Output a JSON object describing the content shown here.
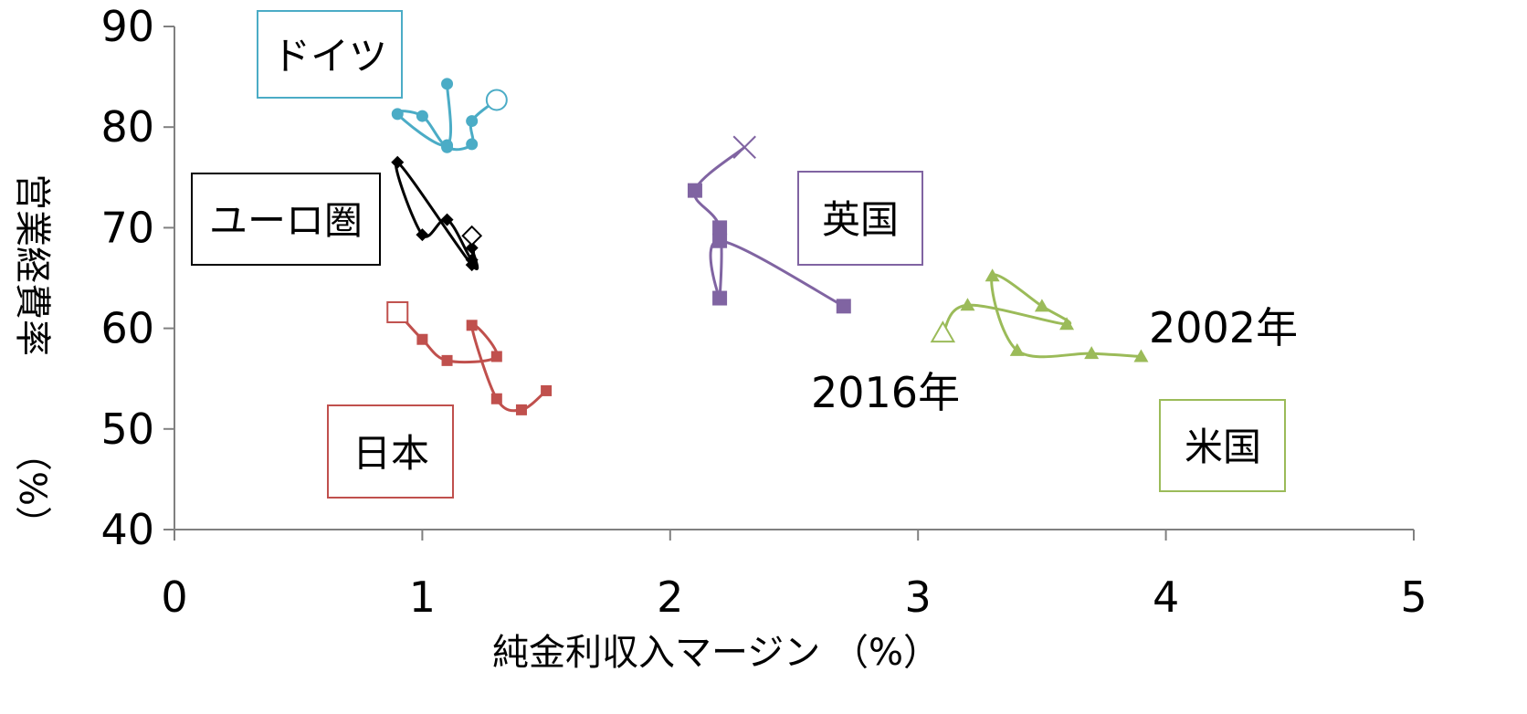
{
  "chart_data": {
    "type": "scatter",
    "title": "",
    "xlabel": "純金利収入マージン （%）",
    "ylabel_main": "営業経費率",
    "ylabel_unit": "（%）",
    "xlim": [
      0,
      5
    ],
    "ylim": [
      40,
      90
    ],
    "x_ticks": [
      "0",
      "1",
      "2",
      "3",
      "4",
      "5"
    ],
    "y_ticks": [
      "40",
      "50",
      "60",
      "70",
      "80",
      "90"
    ],
    "grid": false,
    "annotations": {
      "start_year": "2002年",
      "end_year": "2016年"
    },
    "series": [
      {
        "name": "ドイツ",
        "color": "#4bacc6",
        "marker": "circle",
        "end_marker": "circle-open",
        "points": [
          [
            1.1,
            84.3
          ],
          [
            1.1,
            78.2
          ],
          [
            0.9,
            81.3
          ],
          [
            1.0,
            81.1
          ],
          [
            1.1,
            78.0
          ],
          [
            1.2,
            78.3
          ],
          [
            1.2,
            80.6
          ],
          [
            1.3,
            82.7
          ]
        ]
      },
      {
        "name": "ユーロ圏",
        "color": "#000000",
        "marker": "diamond",
        "end_marker": "diamond-open",
        "points": [
          [
            1.2,
            68.0
          ],
          [
            1.2,
            66.3
          ],
          [
            0.9,
            76.5
          ],
          [
            1.0,
            69.3
          ],
          [
            1.1,
            70.8
          ],
          [
            1.2,
            66.8
          ],
          [
            1.2,
            69.2
          ]
        ]
      },
      {
        "name": "英国",
        "color": "#8064a2",
        "marker": "square",
        "end_marker": "x",
        "points": [
          [
            2.7,
            62.2
          ],
          [
            2.2,
            68.7
          ],
          [
            2.2,
            63.0
          ],
          [
            2.2,
            70.0
          ],
          [
            2.1,
            73.7
          ],
          [
            2.3,
            78.0
          ]
        ]
      },
      {
        "name": "日本",
        "color": "#c0504d",
        "marker": "square-small",
        "end_marker": "square-open",
        "points": [
          [
            1.5,
            53.8
          ],
          [
            1.4,
            51.9
          ],
          [
            1.3,
            53.0
          ],
          [
            1.2,
            60.3
          ],
          [
            1.3,
            57.2
          ],
          [
            1.1,
            56.8
          ],
          [
            1.0,
            58.9
          ],
          [
            0.9,
            61.6
          ]
        ]
      },
      {
        "name": "米国",
        "color": "#9bbb59",
        "marker": "triangle",
        "end_marker": "triangle-open",
        "points": [
          [
            3.9,
            57.2
          ],
          [
            3.7,
            57.5
          ],
          [
            3.4,
            57.8
          ],
          [
            3.3,
            65.2
          ],
          [
            3.5,
            62.2
          ],
          [
            3.6,
            60.4
          ],
          [
            3.2,
            62.3
          ],
          [
            3.1,
            59.5
          ]
        ]
      }
    ]
  }
}
